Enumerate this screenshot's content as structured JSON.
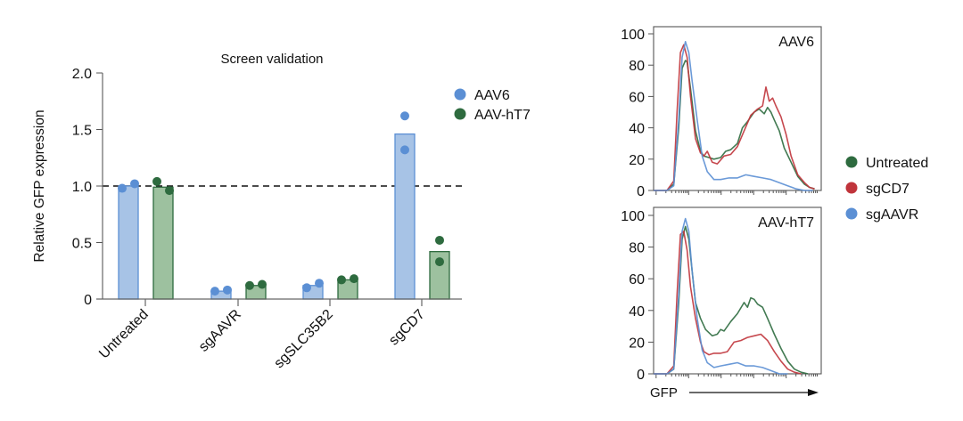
{
  "chart_data": [
    {
      "id": "bar",
      "type": "bar",
      "title": "Screen validation",
      "xlabel": "",
      "ylabel": "Relative GFP expression",
      "ylim": [
        0,
        2.0
      ],
      "yticks": [
        0,
        0.5,
        1.0,
        1.5,
        2.0
      ],
      "ytick_labels": [
        "0",
        "0.5",
        "1.0",
        "1.5",
        "2.0"
      ],
      "categories": [
        "Untreated",
        "sgAAVR",
        "sgSLC35B2",
        "sgCD7"
      ],
      "reference_line": 1.0,
      "legend_position": "top-right",
      "series": [
        {
          "name": "AAV6",
          "color": "#5b8fd4",
          "bar_fill": "#a7c3e6",
          "values": [
            1.0,
            0.07,
            0.12,
            1.46
          ],
          "points": [
            [
              0.98,
              1.02
            ],
            [
              0.07,
              0.08
            ],
            [
              0.1,
              0.14
            ],
            [
              1.62,
              1.32
            ]
          ]
        },
        {
          "name": "AAV-hT7",
          "color": "#2e6b3f",
          "bar_fill": "#9dc19f",
          "values": [
            0.99,
            0.12,
            0.17,
            0.42
          ],
          "points": [
            [
              1.04,
              0.96
            ],
            [
              0.12,
              0.13
            ],
            [
              0.17,
              0.18
            ],
            [
              0.52,
              0.33
            ]
          ]
        }
      ]
    },
    {
      "id": "hist-aav6",
      "type": "line",
      "title": "AAV6",
      "xlabel": "",
      "ylabel": "",
      "ylim": [
        0,
        100
      ],
      "yticks": [
        0,
        20,
        40,
        60,
        80,
        100
      ],
      "ytick_labels": [
        "0",
        "20",
        "40",
        "60",
        "80",
        "100"
      ],
      "x_scale": "log (GFP, relative 0-1)",
      "series": [
        {
          "name": "Untreated",
          "color": "#2e6b3f",
          "x": [
            0,
            0.08,
            0.12,
            0.15,
            0.17,
            0.19,
            0.2,
            0.22,
            0.25,
            0.28,
            0.3,
            0.33,
            0.36,
            0.4,
            0.43,
            0.46,
            0.5,
            0.53,
            0.56,
            0.6,
            0.63,
            0.66,
            0.68,
            0.7,
            0.72,
            0.75,
            0.78,
            0.82,
            0.86,
            0.9,
            0.93,
            0.96
          ],
          "y": [
            0,
            0,
            4,
            40,
            78,
            83,
            82,
            65,
            38,
            25,
            22,
            21,
            20,
            21,
            25,
            26,
            30,
            40,
            44,
            50,
            52,
            49,
            53,
            50,
            45,
            38,
            27,
            18,
            9,
            4,
            2,
            1
          ]
        },
        {
          "name": "sgCD7",
          "color": "#c0343b",
          "x": [
            0,
            0.08,
            0.12,
            0.14,
            0.16,
            0.18,
            0.2,
            0.22,
            0.25,
            0.28,
            0.3,
            0.32,
            0.35,
            0.38,
            0.42,
            0.46,
            0.5,
            0.54,
            0.58,
            0.62,
            0.65,
            0.67,
            0.69,
            0.71,
            0.73,
            0.76,
            0.79,
            0.82,
            0.86,
            0.9,
            0.93,
            0.96
          ],
          "y": [
            0,
            0,
            6,
            50,
            88,
            93,
            85,
            60,
            33,
            24,
            22,
            25,
            18,
            17,
            22,
            23,
            28,
            38,
            48,
            52,
            54,
            66,
            57,
            59,
            54,
            47,
            36,
            22,
            10,
            5,
            2,
            1
          ]
        },
        {
          "name": "sgAAVR",
          "color": "#5b8fd4",
          "x": [
            0,
            0.08,
            0.12,
            0.15,
            0.17,
            0.19,
            0.21,
            0.23,
            0.26,
            0.29,
            0.32,
            0.36,
            0.4,
            0.45,
            0.5,
            0.55,
            0.6,
            0.65,
            0.7,
            0.75,
            0.8,
            0.85,
            0.9,
            0.95
          ],
          "y": [
            0,
            0,
            3,
            45,
            85,
            95,
            88,
            70,
            45,
            22,
            12,
            7,
            7,
            8,
            8,
            10,
            9,
            8,
            7,
            5,
            3,
            1,
            0,
            0
          ]
        }
      ]
    },
    {
      "id": "hist-aavht7",
      "type": "line",
      "title": "AAV-hT7",
      "xlabel": "GFP",
      "ylabel": "",
      "ylim": [
        0,
        100
      ],
      "yticks": [
        0,
        20,
        40,
        60,
        80,
        100
      ],
      "ytick_labels": [
        "0",
        "20",
        "40",
        "60",
        "80",
        "100"
      ],
      "x_scale": "log (GFP, relative 0-1)",
      "series": [
        {
          "name": "Untreated",
          "color": "#2e6b3f",
          "x": [
            0,
            0.08,
            0.12,
            0.15,
            0.17,
            0.19,
            0.21,
            0.23,
            0.25,
            0.28,
            0.31,
            0.35,
            0.38,
            0.4,
            0.42,
            0.46,
            0.5,
            0.54,
            0.56,
            0.58,
            0.6,
            0.62,
            0.65,
            0.68,
            0.72,
            0.76,
            0.8,
            0.84,
            0.88,
            0.92
          ],
          "y": [
            0,
            0,
            3,
            45,
            85,
            93,
            85,
            65,
            45,
            35,
            28,
            24,
            25,
            28,
            27,
            33,
            38,
            45,
            42,
            48,
            47,
            44,
            42,
            35,
            25,
            16,
            8,
            3,
            1,
            0
          ]
        },
        {
          "name": "sgCD7",
          "color": "#c0343b",
          "x": [
            0,
            0.08,
            0.12,
            0.14,
            0.16,
            0.18,
            0.2,
            0.22,
            0.25,
            0.28,
            0.3,
            0.33,
            0.36,
            0.4,
            0.44,
            0.48,
            0.52,
            0.56,
            0.6,
            0.64,
            0.68,
            0.72,
            0.76,
            0.8,
            0.84,
            0.88
          ],
          "y": [
            0,
            0,
            5,
            50,
            88,
            90,
            78,
            55,
            35,
            20,
            14,
            12,
            13,
            13,
            14,
            20,
            21,
            23,
            24,
            25,
            21,
            14,
            8,
            3,
            1,
            0
          ]
        },
        {
          "name": "sgAAVR",
          "color": "#5b8fd4",
          "x": [
            0,
            0.08,
            0.12,
            0.15,
            0.17,
            0.19,
            0.21,
            0.23,
            0.26,
            0.29,
            0.32,
            0.36,
            0.4,
            0.45,
            0.5,
            0.55,
            0.6,
            0.65,
            0.7,
            0.75,
            0.8
          ],
          "y": [
            0,
            0,
            3,
            50,
            90,
            98,
            90,
            65,
            35,
            15,
            7,
            4,
            5,
            6,
            7,
            5,
            5,
            4,
            2,
            0,
            0
          ]
        }
      ]
    }
  ],
  "histogram_legend": [
    {
      "name": "Untreated",
      "color": "#2e6b3f"
    },
    {
      "name": "sgCD7",
      "color": "#c0343b"
    },
    {
      "name": "sgAAVR",
      "color": "#5b8fd4"
    }
  ]
}
